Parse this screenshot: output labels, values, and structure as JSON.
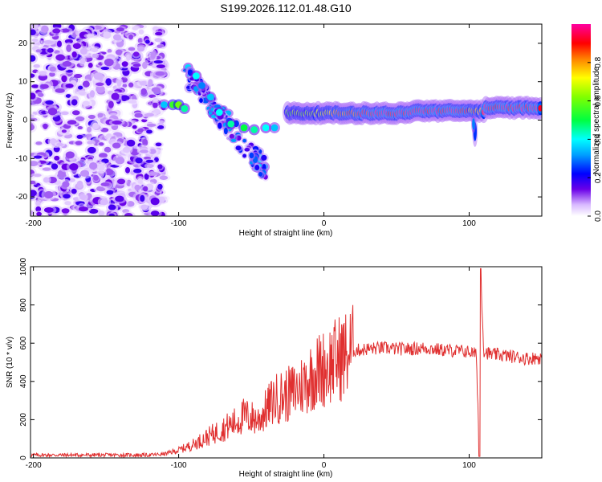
{
  "chart_data": [
    {
      "type": "heatmap",
      "title": "S199.2026.112.01.48.G10",
      "xlabel": "Height of straight line (km)",
      "ylabel": "Frequency (Hz)",
      "xlim": [
        -202,
        150
      ],
      "ylim": [
        -25,
        25
      ],
      "xticks": [
        -200,
        -100,
        0,
        100
      ],
      "yticks": [
        -20,
        -10,
        0,
        10,
        20
      ],
      "colorbar": {
        "label": "Normalized spectral amplitude",
        "range": [
          0,
          1
        ],
        "ticks": [
          "0.0",
          "0.2",
          "0.4",
          "0.6",
          "0.8"
        ]
      },
      "description_points": [
        {
          "x": -100,
          "y": 4,
          "amp": 0.55
        },
        {
          "x": -90,
          "y": 12,
          "amp": 0.35
        },
        {
          "x": -75,
          "y": 6,
          "amp": 0.3
        },
        {
          "x": -60,
          "y": 0,
          "amp": 0.45
        },
        {
          "x": -45,
          "y": -2,
          "amp": 0.5
        },
        {
          "x": -20,
          "y": 1,
          "amp": 0.75
        },
        {
          "x": 0,
          "y": 2,
          "amp": 0.85
        },
        {
          "x": 50,
          "y": 2,
          "amp": 0.95
        },
        {
          "x": 100,
          "y": 2,
          "amp": 0.9
        },
        {
          "x": 148,
          "y": 3,
          "amp": 0.9
        }
      ]
    },
    {
      "type": "line",
      "xlabel": "Height of straight line (km)",
      "ylabel": "SNR (10 * v/v)",
      "xlim": [
        -202,
        150
      ],
      "ylim": [
        0,
        1000
      ],
      "xticks": [
        -200,
        -100,
        0,
        100
      ],
      "yticks": [
        0,
        200,
        400,
        600,
        800,
        1000
      ],
      "color": "#e03030",
      "series": [
        {
          "name": "SNR",
          "x": [
            -202,
            -180,
            -160,
            -140,
            -120,
            -110,
            -100,
            -90,
            -80,
            -70,
            -60,
            -55,
            -50,
            -45,
            -40,
            -35,
            -30,
            -25,
            -20,
            -15,
            -10,
            -5,
            0,
            10,
            20,
            30,
            40,
            50,
            60,
            70,
            80,
            90,
            100,
            105,
            107,
            108,
            110,
            115,
            120,
            130,
            140,
            150
          ],
          "y": [
            15,
            15,
            15,
            15,
            15,
            20,
            40,
            70,
            110,
            150,
            190,
            220,
            210,
            200,
            250,
            300,
            320,
            330,
            350,
            380,
            420,
            450,
            470,
            520,
            560,
            570,
            575,
            570,
            570,
            575,
            565,
            560,
            555,
            540,
            10,
            980,
            560,
            540,
            540,
            530,
            520,
            525
          ]
        }
      ]
    }
  ]
}
